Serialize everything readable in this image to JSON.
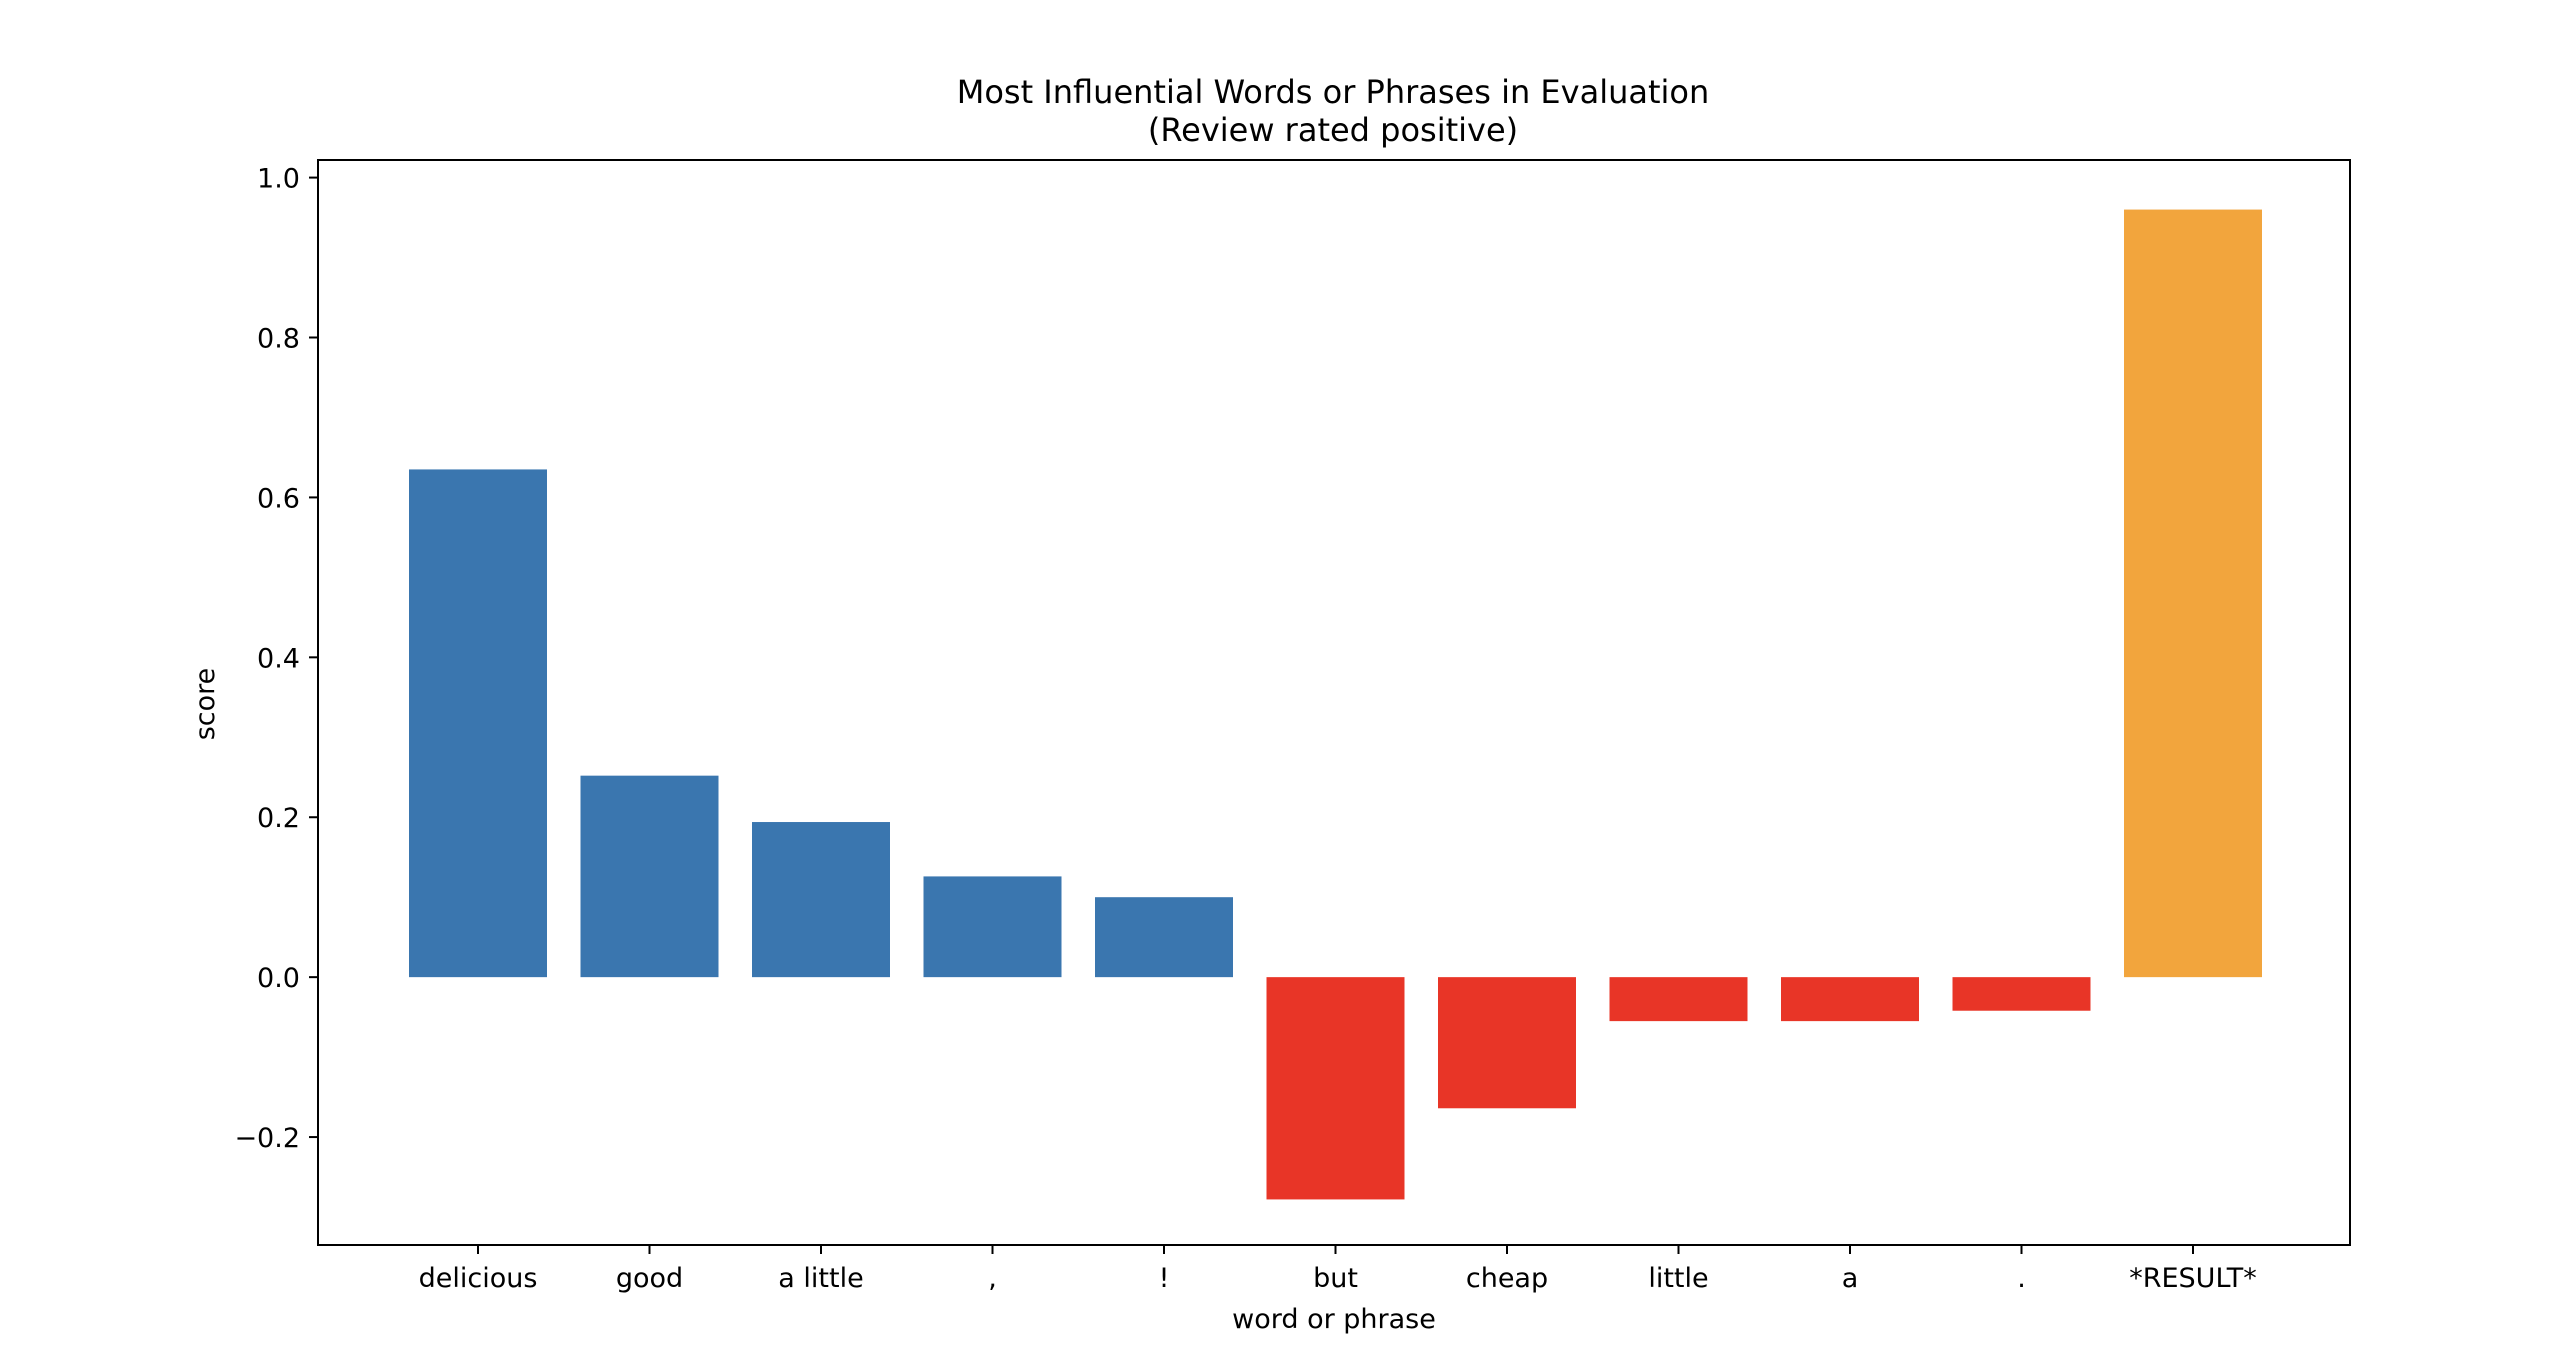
{
  "chart_data": {
    "type": "bar",
    "title": "Most Influential Words or Phrases in Evaluation",
    "subtitle": "(Review rated positive)",
    "xlabel": "word or phrase",
    "ylabel": "score",
    "categories": [
      "delicious",
      "good",
      "a little",
      ",",
      "!",
      "but",
      "cheap",
      "little",
      "a",
      ".",
      "*RESULT*"
    ],
    "values": [
      0.635,
      0.252,
      0.194,
      0.126,
      0.1,
      -0.278,
      -0.164,
      -0.055,
      -0.055,
      -0.042,
      0.96
    ],
    "bar_colors": [
      "#3a76af",
      "#3a76af",
      "#3a76af",
      "#3a76af",
      "#3a76af",
      "#e83527",
      "#e83527",
      "#e83527",
      "#e83527",
      "#e83527",
      "#f2a53d"
    ],
    "ylim": [
      -0.335,
      1.022
    ],
    "yticks": [
      -0.2,
      0.0,
      0.2,
      0.4,
      0.6,
      0.8,
      1.0
    ],
    "ytick_labels": [
      "−0.2",
      "0.0",
      "0.2",
      "0.4",
      "0.6",
      "0.8",
      "1.0"
    ],
    "grid": false,
    "legend": false
  }
}
